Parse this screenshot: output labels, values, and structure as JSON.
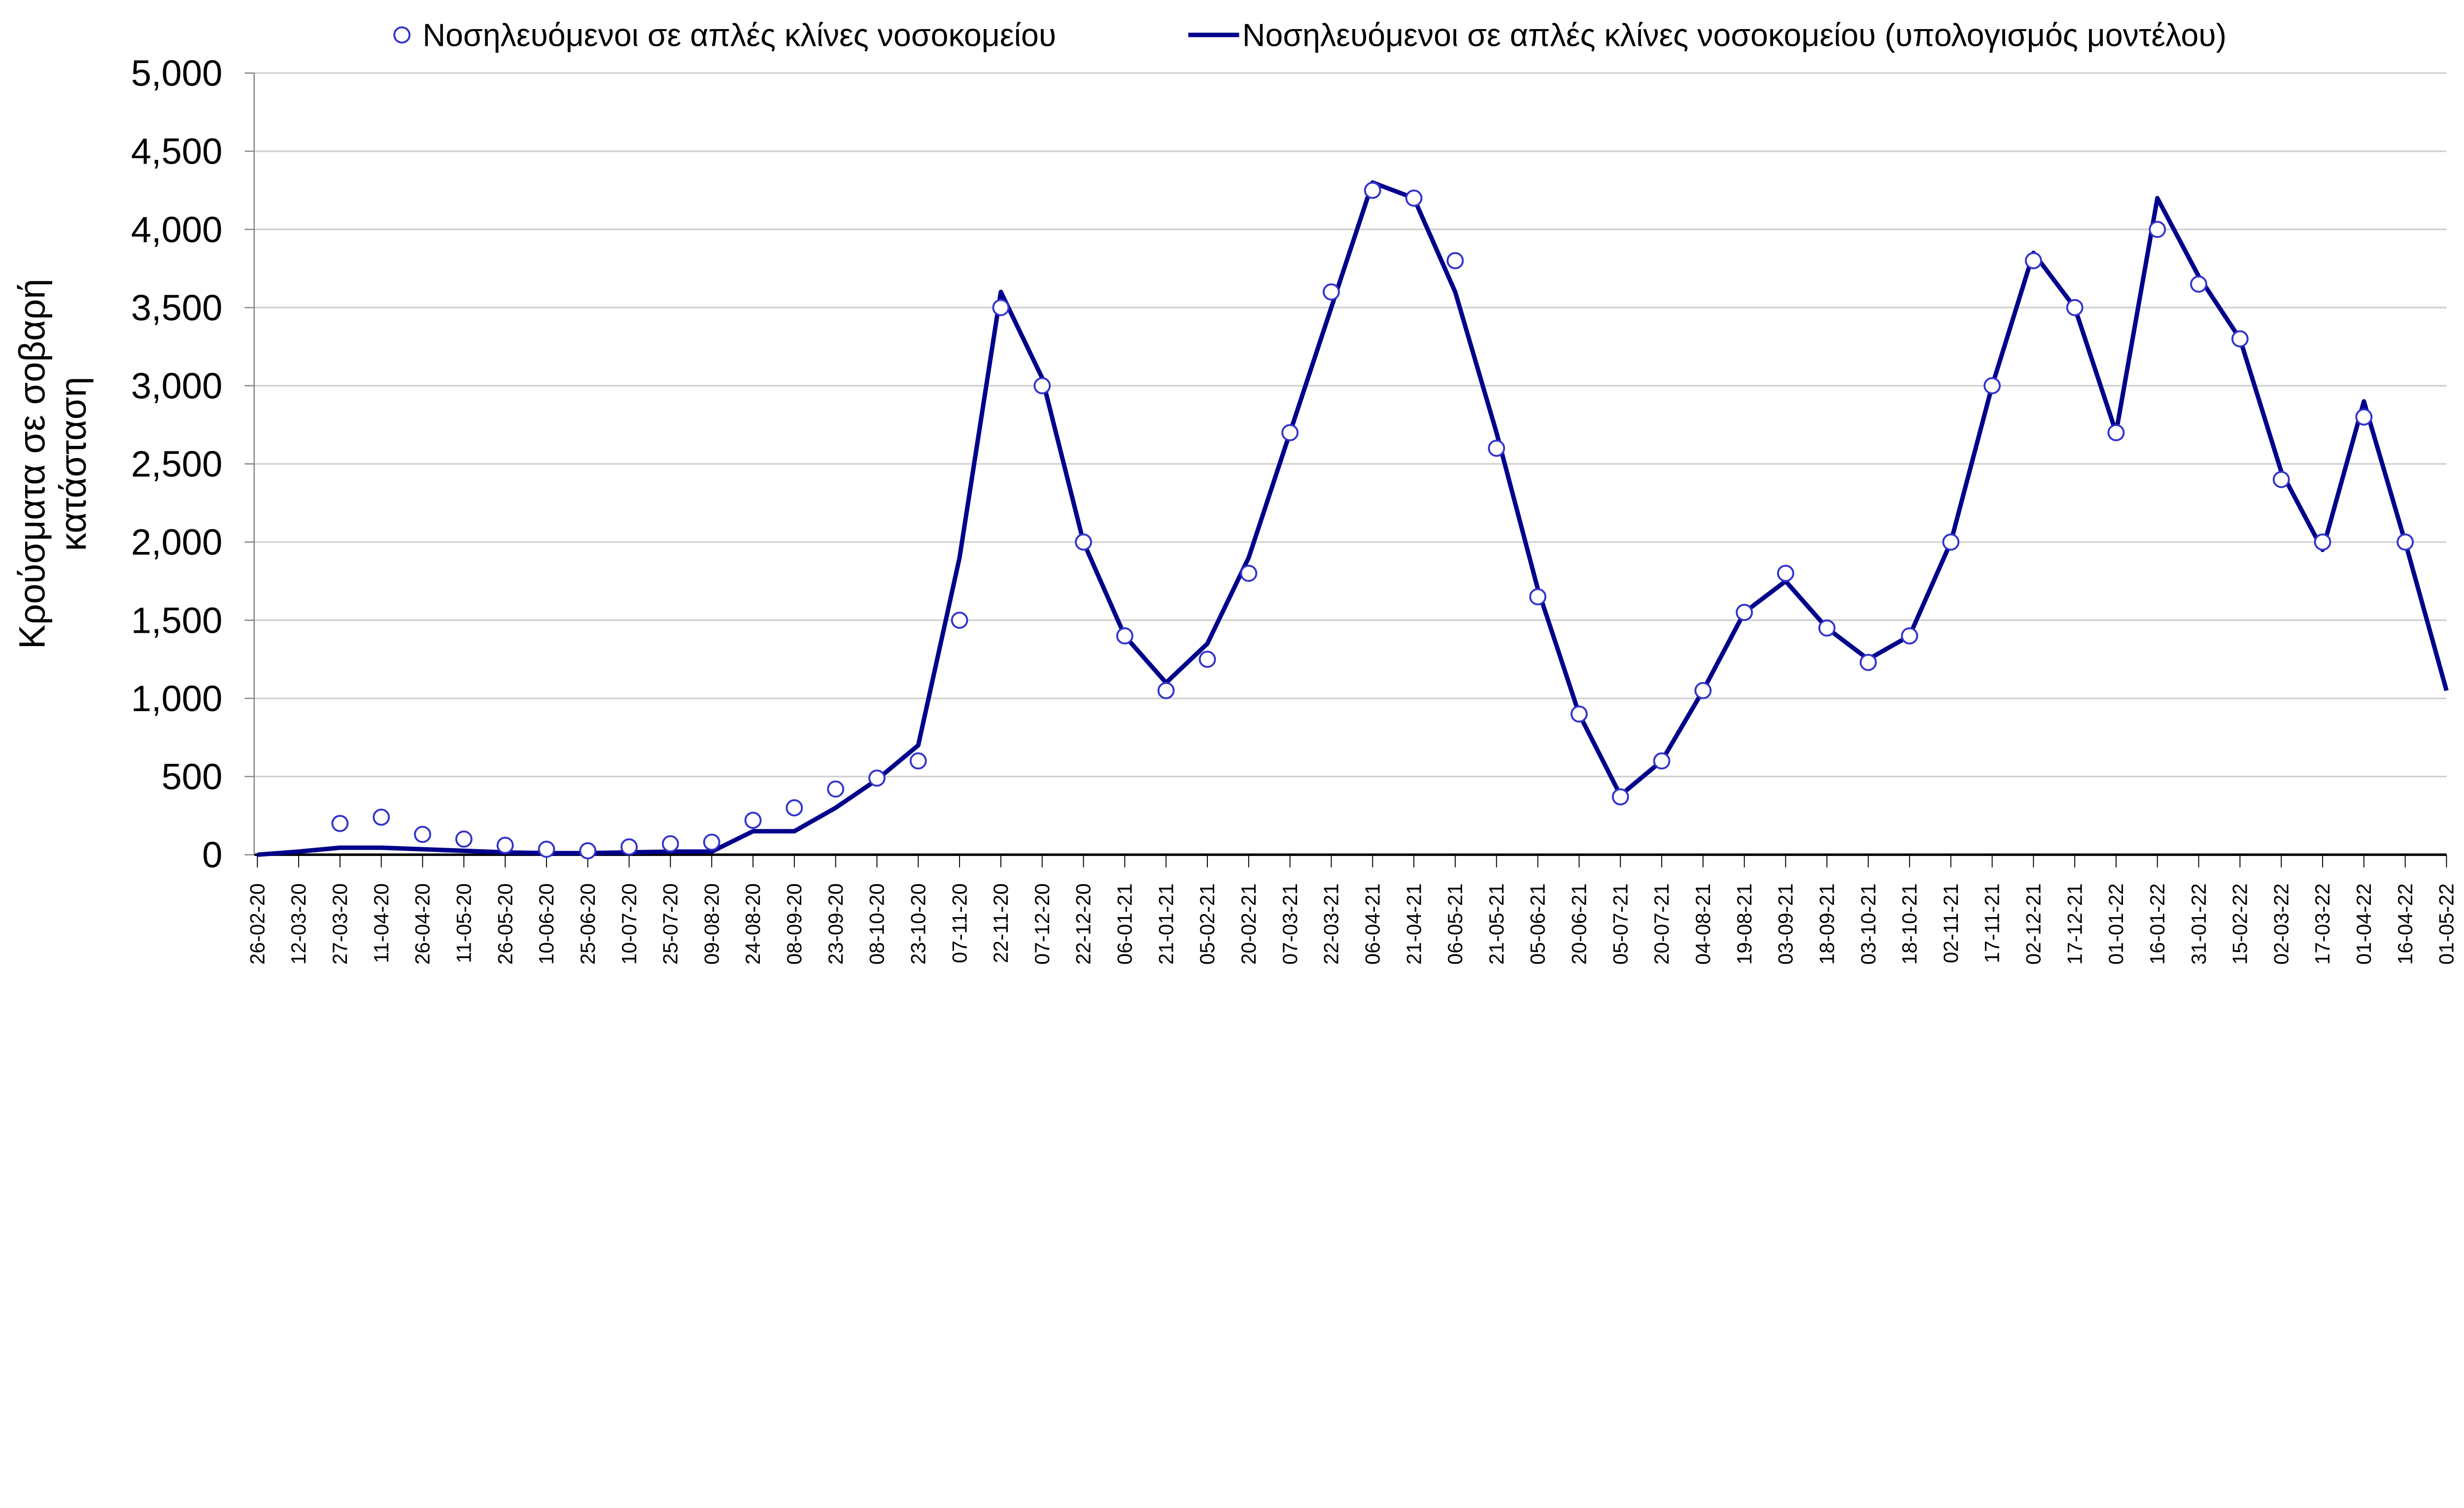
{
  "chart_data": {
    "type": "line",
    "title": "",
    "xlabel": "",
    "ylabel_lines": [
      "Κρούσματα σε σοβαρή",
      "κατάσταση"
    ],
    "ylim": [
      0,
      5000
    ],
    "yticks": [
      "0",
      "500",
      "1,000",
      "1,500",
      "2,000",
      "2,500",
      "3,000",
      "3,500",
      "4,000",
      "4,500",
      "5,000"
    ],
    "ytick_values": [
      0,
      500,
      1000,
      1500,
      2000,
      2500,
      3000,
      3500,
      4000,
      4500,
      5000
    ],
    "grid": true,
    "legend_position": "top",
    "x": [
      "26-02-20",
      "12-03-20",
      "27-03-20",
      "11-04-20",
      "26-04-20",
      "11-05-20",
      "26-05-20",
      "10-06-20",
      "25-06-20",
      "10-07-20",
      "25-07-20",
      "09-08-20",
      "24-08-20",
      "08-09-20",
      "23-09-20",
      "08-10-20",
      "23-10-20",
      "07-11-20",
      "22-11-20",
      "07-12-20",
      "22-12-20",
      "06-01-21",
      "21-01-21",
      "05-02-21",
      "20-02-21",
      "07-03-21",
      "22-03-21",
      "06-04-21",
      "21-04-21",
      "06-05-21",
      "21-05-21",
      "05-06-21",
      "20-06-21",
      "05-07-21",
      "20-07-21",
      "04-08-21",
      "19-08-21",
      "03-09-21",
      "18-09-21",
      "03-10-21",
      "18-10-21",
      "02-11-21",
      "17-11-21",
      "02-12-21",
      "17-12-21",
      "01-01-22",
      "16-01-22",
      "31-01-22",
      "15-02-22",
      "02-03-22",
      "17-03-22",
      "01-04-22",
      "16-04-22",
      "01-05-22"
    ],
    "series": [
      {
        "name": "Νοσηλευόμενοι σε απλές κλίνες νοσοκομείου",
        "style": "markers",
        "color": "#3333cc",
        "values": [
          null,
          null,
          200,
          240,
          130,
          100,
          60,
          35,
          25,
          50,
          70,
          80,
          220,
          300,
          420,
          490,
          600,
          1500,
          3500,
          3000,
          2000,
          1400,
          1050,
          1250,
          1800,
          2700,
          3600,
          4250,
          4200,
          3800,
          2600,
          1650,
          900,
          370,
          600,
          1050,
          1550,
          1800,
          1450,
          1230,
          1400,
          2000,
          3000,
          3800,
          3500,
          2700,
          4000,
          3650,
          3300,
          2400,
          2000,
          2800,
          2000,
          null
        ]
      },
      {
        "name": "Νοσηλευόμενοι σε απλές κλίνες νοσοκομείου (υπολογισμός μοντέλου)",
        "style": "line",
        "color": "#00008b",
        "values": [
          0,
          20,
          45,
          45,
          35,
          25,
          15,
          10,
          10,
          15,
          20,
          20,
          150,
          150,
          300,
          480,
          700,
          1900,
          3600,
          3050,
          2000,
          1400,
          1100,
          1350,
          1900,
          2700,
          3500,
          4300,
          4200,
          3600,
          2700,
          1700,
          900,
          380,
          600,
          1050,
          1550,
          1750,
          1450,
          1250,
          1400,
          2000,
          3000,
          3850,
          3500,
          2700,
          4200,
          3700,
          3300,
          2450,
          1950,
          2900,
          2000,
          1050
        ]
      }
    ]
  }
}
